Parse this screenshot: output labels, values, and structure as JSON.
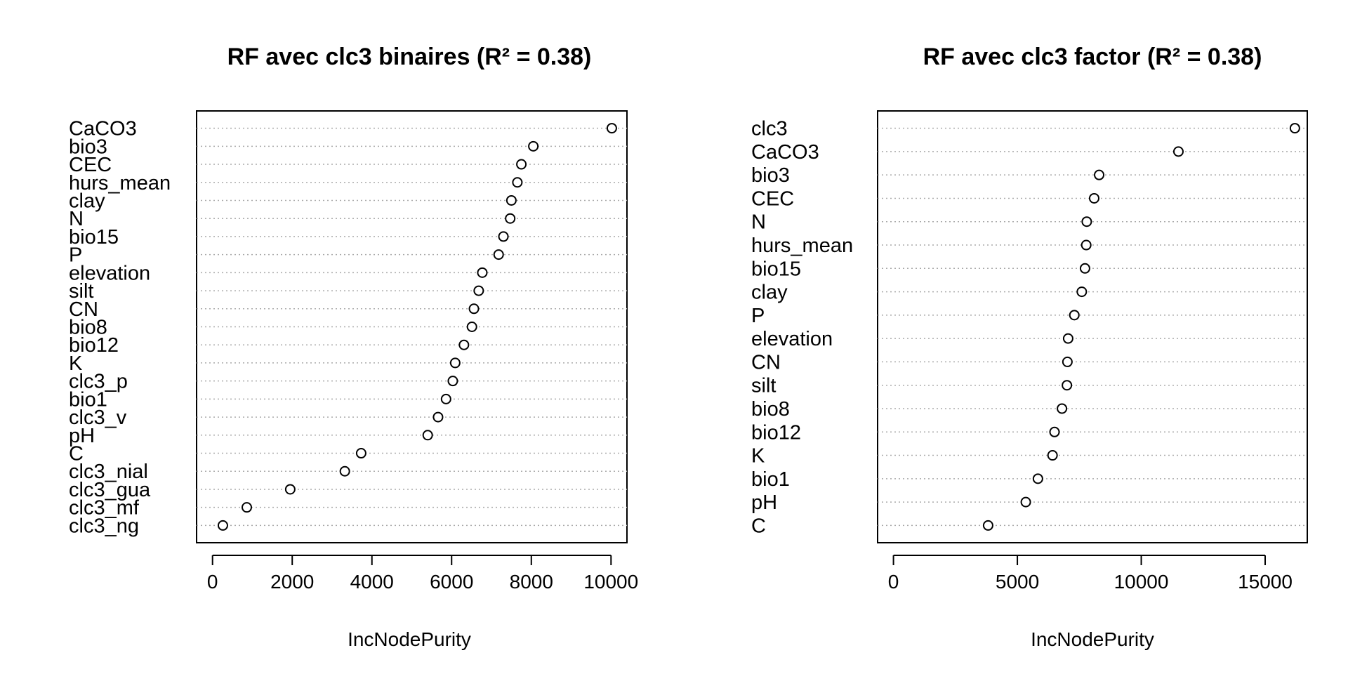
{
  "chart_data": [
    {
      "type": "scatter",
      "title": "RF avec clc3 binaires (R² = 0.38)",
      "xlabel": "IncNodePurity",
      "ylabel": "",
      "xlim": [
        -400,
        10400
      ],
      "xticks": [
        0,
        2000,
        4000,
        6000,
        8000,
        10000
      ],
      "grid": "dotted horizontal",
      "variables": [
        "CaCO3",
        "bio3",
        "CEC",
        "hurs_mean",
        "clay",
        "N",
        "bio15",
        "P",
        "elevation",
        "silt",
        "CN",
        "bio8",
        "bio12",
        "K",
        "clc3_p",
        "bio1",
        "clc3_v",
        "pH",
        "C",
        "clc3_nial",
        "clc3_gua",
        "clc3_mf",
        "clc3_ng"
      ],
      "values": [
        10020,
        8050,
        7750,
        7650,
        7500,
        7470,
        7300,
        7180,
        6770,
        6680,
        6560,
        6510,
        6310,
        6090,
        6030,
        5860,
        5660,
        5400,
        3730,
        3320,
        1950,
        860,
        260
      ]
    },
    {
      "type": "scatter",
      "title": "RF avec clc3 factor (R² = 0.38)",
      "xlabel": "IncNodePurity",
      "ylabel": "",
      "xlim": [
        -640,
        16700
      ],
      "xticks": [
        0,
        5000,
        10000,
        15000
      ],
      "grid": "dotted horizontal",
      "variables": [
        "clc3",
        "CaCO3",
        "bio3",
        "CEC",
        "N",
        "hurs_mean",
        "bio15",
        "clay",
        "P",
        "elevation",
        "CN",
        "silt",
        "bio8",
        "bio12",
        "K",
        "bio1",
        "pH",
        "C"
      ],
      "values": [
        16200,
        11500,
        8300,
        8100,
        7800,
        7780,
        7730,
        7600,
        7300,
        7050,
        7020,
        7000,
        6800,
        6500,
        6420,
        5830,
        5340,
        3820
      ]
    }
  ]
}
